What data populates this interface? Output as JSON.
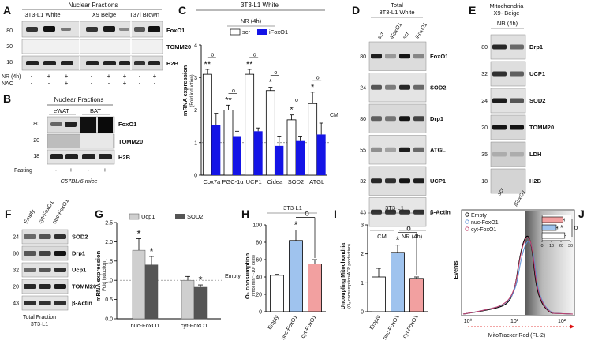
{
  "panels": {
    "A": {
      "letter": "A",
      "header": "Nuclear Fractions",
      "groups": [
        "3T3-L1 White",
        "X9 Beige",
        "T37i Brown"
      ],
      "markers": [
        "80",
        "20",
        "18"
      ],
      "proteins": [
        "FoxO1",
        "TOMM20",
        "H2B"
      ],
      "treatments": [
        {
          "label": "NR (4h)",
          "signs": [
            "-",
            "+",
            "+",
            "-",
            "+",
            "+",
            "-",
            "+"
          ]
        },
        {
          "label": "NAC",
          "signs": [
            "-",
            "-",
            "+",
            "-",
            "-",
            "+",
            "-",
            "-"
          ]
        }
      ]
    },
    "B": {
      "letter": "B",
      "header": "Nuclear Fractions",
      "groups": [
        "eWAT",
        "BAT"
      ],
      "markers": [
        "80",
        "20",
        "18"
      ],
      "proteins": [
        "FoxO1",
        "TOMM20",
        "H2B"
      ],
      "treatment": {
        "label": "Fasting",
        "signs": [
          "-",
          "+",
          "-",
          "+"
        ]
      },
      "footer": "C57BL/6 mice"
    },
    "C": {
      "letter": "C",
      "top_label": "3T3-L1 White",
      "legend_header": "NR (4h)",
      "ref_label": "CM",
      "stars": [
        "**",
        "**",
        "**",
        "*",
        "*",
        "*"
      ],
      "circles": [
        "o",
        "o",
        "o",
        "o",
        "o",
        "o"
      ]
    },
    "D": {
      "letter": "D",
      "header_line1": "Total",
      "header_line2": "3T3-L1 White",
      "lanes": [
        "scr",
        "iFoxO1",
        "scr",
        "iFoxO1"
      ],
      "markers": [
        "80",
        "24",
        "80",
        "55",
        "32",
        "43"
      ],
      "proteins": [
        "FoxO1",
        "SOD2",
        "Drp1",
        "ATGL",
        "UCP1",
        "β-Actin"
      ],
      "conditions": [
        "CM",
        "NR (4h)"
      ]
    },
    "E": {
      "letter": "E",
      "header_line1": "Mitochondria",
      "header_line2": "X9- Beige",
      "header_line3": "NR (4h)",
      "lanes": [
        "scr",
        "iFoxO1"
      ],
      "markers": [
        "80",
        "32",
        "24",
        "20",
        "35",
        "18"
      ],
      "proteins": [
        "Drp1",
        "UCP1",
        "SOD2",
        "TOMM20",
        "LDH",
        "H2B"
      ]
    },
    "F": {
      "letter": "F",
      "lanes": [
        "Empty",
        "cyt-FoxO1",
        "nuc-FoxO1"
      ],
      "markers": [
        "24",
        "80",
        "32",
        "20",
        "43"
      ],
      "proteins": [
        "SOD2",
        "Drp1",
        "Ucp1",
        "TOMM20",
        "β-Actin"
      ],
      "footer_line1": "Total Fraction",
      "footer_line2": "3T3-L1"
    },
    "G": {
      "letter": "G",
      "stars": [
        "*",
        "*",
        "*"
      ],
      "ref_label": "Empty"
    },
    "H": {
      "letter": "H",
      "top_label": "3T3-L1",
      "stars": [
        "*"
      ],
      "circles": [
        "o"
      ]
    },
    "I": {
      "letter": "I",
      "top_label": "3T3-L1",
      "stars": [
        "*"
      ],
      "circles": [
        "o"
      ]
    },
    "J": {
      "letter": "J",
      "ylabel": "Events",
      "xlabel": "MitoTracker Red (FL-2)",
      "tick_labels": [
        "10⁰",
        "10¹",
        "10²"
      ],
      "legend": [
        "Empty",
        "nuc-FoxO1",
        "cyt-FoxO1"
      ],
      "inset_ticks": [
        "0",
        "10",
        "20",
        "30"
      ],
      "stars": [
        "*"
      ],
      "circles": [
        "o"
      ]
    }
  },
  "colors": {
    "scr": "#ffffff",
    "iFoxO1": "#1414e6",
    "ucp1": "#cfcfcf",
    "sod2": "#555555",
    "empty": "#ffffff",
    "nuc": "#9fc3ee",
    "cyt": "#f2a0a0"
  },
  "chart_data": [
    {
      "panel": "C",
      "type": "bar",
      "categories": [
        "Cox7a",
        "PGC-1α",
        "UCP1",
        "Cidea",
        "SOD2",
        "ATGL"
      ],
      "series": [
        {
          "name": "scr",
          "values": [
            3.1,
            2.0,
            3.1,
            2.6,
            1.7,
            2.2
          ],
          "errors": [
            0.15,
            0.15,
            0.15,
            0.1,
            0.15,
            0.35
          ]
        },
        {
          "name": "iFoxO1",
          "values": [
            1.55,
            1.2,
            1.35,
            0.9,
            1.05,
            1.25
          ],
          "errors": [
            0.35,
            0.15,
            0.1,
            0.3,
            0.15,
            0.35
          ]
        }
      ],
      "ylabel": "mRNA expression",
      "ylabel2": "(Fold induction)",
      "ylim": [
        0,
        4
      ],
      "yticks": [
        0,
        1,
        2,
        3,
        4
      ],
      "reference_line": 1
    },
    {
      "panel": "G",
      "type": "bar",
      "categories": [
        "nuc-FoxO1",
        "cyt-FoxO1"
      ],
      "series": [
        {
          "name": "Ucp1",
          "values": [
            1.78,
            1.0
          ],
          "errors": [
            0.3,
            0.1
          ]
        },
        {
          "name": "SOD2",
          "values": [
            1.4,
            0.82
          ],
          "errors": [
            0.22,
            0.06
          ]
        }
      ],
      "ylabel": "mRNA expression",
      "ylabel2": "Fold Induction",
      "ylim": [
        0,
        2.5
      ],
      "yticks": [
        0.0,
        0.5,
        1.0,
        1.5,
        2.0,
        2.5
      ],
      "reference_line": 1
    },
    {
      "panel": "H",
      "type": "bar",
      "categories": [
        "Empty",
        "nuc-FoxO1",
        "cyt-FoxO1"
      ],
      "values": [
        42,
        82,
        55
      ],
      "errors": [
        1,
        12,
        5
      ],
      "ylabel": "O₂ consumption",
      "ylabel2": "(nmol·min⁻¹·10⁶ cells)",
      "ylim": [
        0,
        100
      ],
      "yticks": [
        0,
        20,
        40,
        60,
        80,
        100
      ]
    },
    {
      "panel": "I",
      "type": "bar",
      "categories": [
        "Empty",
        "nuc-FoxO1",
        "cyt-FoxO1"
      ],
      "values": [
        1.2,
        2.05,
        1.15
      ],
      "errors": [
        0.3,
        0.25,
        0.05
      ],
      "ylabel": "Uncoupling Mitochondria",
      "ylabel2": "(O₂ consumption/ATP production)",
      "ylim": [
        0,
        3
      ],
      "yticks": [
        0,
        1,
        2,
        3
      ]
    },
    {
      "panel": "J-inset",
      "type": "bar",
      "categories": [
        "cyt-FoxO1",
        "nuc-FoxO1",
        "Empty"
      ],
      "values": [
        22,
        15,
        24
      ],
      "errors": [
        1.5,
        1.5,
        1.5
      ],
      "xlim": [
        0,
        30
      ],
      "xticks": [
        0,
        10,
        20,
        30
      ]
    }
  ]
}
